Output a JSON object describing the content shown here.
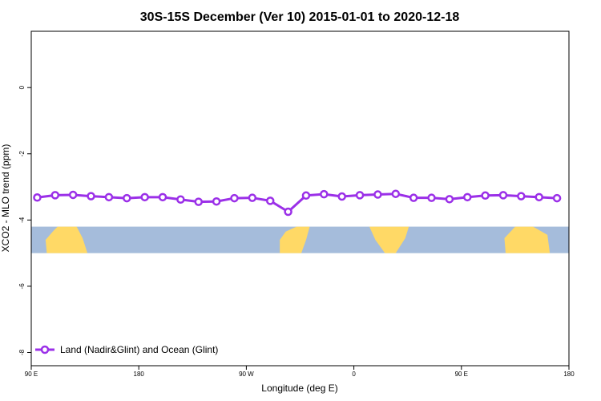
{
  "chart_data": {
    "type": "line",
    "title": "30S-15S December (Ver 10)   2015-01-01 to 2020-12-18",
    "xlabel": "Longitude (deg E)",
    "ylabel": "XCO2 - MLO trend (ppm)",
    "xticks": [
      "90 E",
      "180",
      "90 W",
      "0",
      "90 E",
      "180"
    ],
    "yticks": [
      "0",
      "-2",
      "-4",
      "-6",
      "-8"
    ],
    "ylim": [
      -8.4,
      1.7
    ],
    "map_band_y": [
      -4.2,
      -5.0
    ],
    "series": [
      {
        "name": "Land (Nadir&Glint) and Ocean (Glint)",
        "color": "#9B30E8",
        "x": [
          95,
          110,
          125,
          140,
          155,
          170,
          185,
          200,
          215,
          230,
          245,
          260,
          275,
          290,
          305,
          320,
          335,
          350,
          365,
          380,
          395,
          410,
          425,
          440,
          455,
          470,
          485,
          500,
          515,
          530
        ],
        "y": [
          -3.32,
          -3.25,
          -3.24,
          -3.28,
          -3.31,
          -3.34,
          -3.31,
          -3.31,
          -3.38,
          -3.45,
          -3.44,
          -3.34,
          -3.33,
          -3.42,
          -3.75,
          -3.26,
          -3.22,
          -3.29,
          -3.25,
          -3.23,
          -3.21,
          -3.33,
          -3.33,
          -3.37,
          -3.31,
          -3.26,
          -3.25,
          -3.28,
          -3.31,
          -3.34
        ]
      }
    ]
  }
}
